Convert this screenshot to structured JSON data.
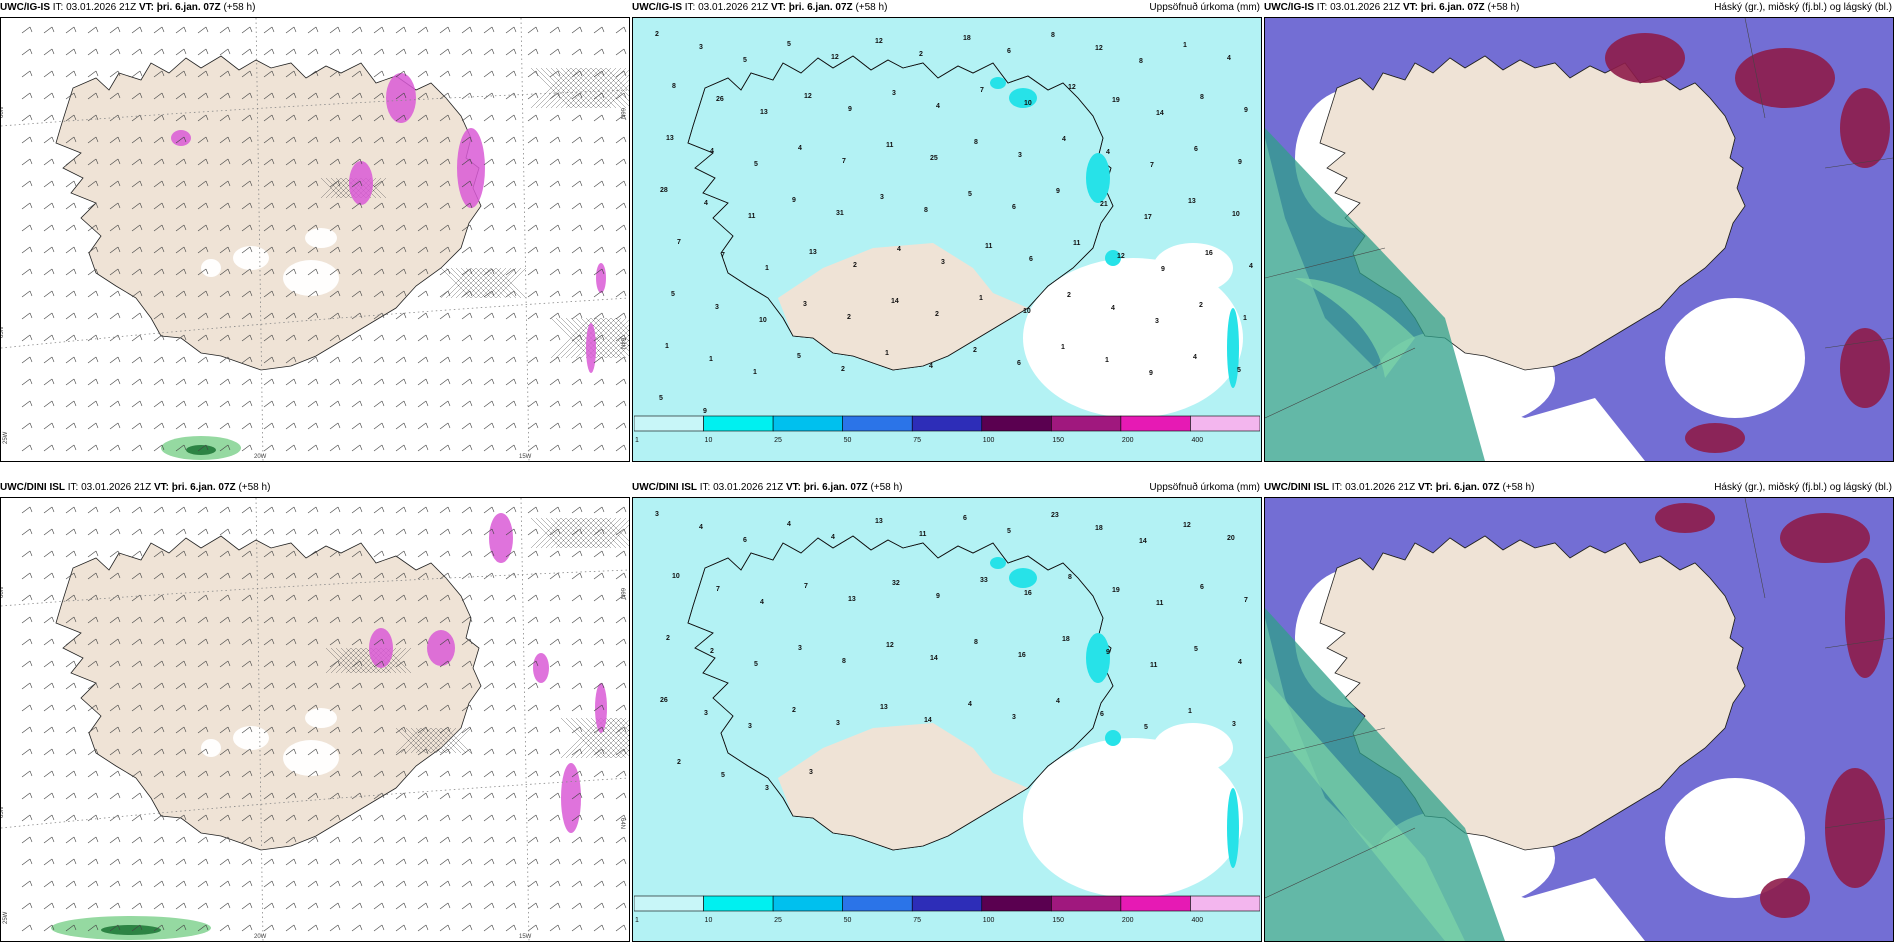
{
  "panels": [
    {
      "model": "UWC/IG-IS",
      "it": "03.01.2026 21Z",
      "vt": "þri. 6.jan. 07Z",
      "lead": "(+58 h)",
      "title": "",
      "kind": "wind"
    },
    {
      "model": "UWC/IG-IS",
      "it": "03.01.2026 21Z",
      "vt": "þri. 6.jan. 07Z",
      "lead": "(+58 h)",
      "title": "Uppsöfnuð úrkoma (mm)",
      "kind": "precip"
    },
    {
      "model": "UWC/IG-IS",
      "it": "03.01.2026 21Z",
      "vt": "þri. 6.jan. 07Z",
      "lead": "(+58 h)",
      "title": "Háský (gr.), miðský (fj.bl.) og lágský (bl.)",
      "kind": "cloud"
    },
    {
      "model": "UWC/DINI ISL",
      "it": "03.01.2026 21Z",
      "vt": "þri. 6.jan. 07Z",
      "lead": "(+58 h)",
      "title": "",
      "kind": "wind"
    },
    {
      "model": "UWC/DINI ISL",
      "it": "03.01.2026 21Z",
      "vt": "þri. 6.jan. 07Z",
      "lead": "(+58 h)",
      "title": "Uppsöfnuð úrkoma (mm)",
      "kind": "precip"
    },
    {
      "model": "UWC/DINI ISL",
      "it": "03.01.2026 21Z",
      "vt": "þri. 6.jan. 07Z",
      "lead": "(+58 h)",
      "title": "Háský (gr.), miðský (fj.bl.) og lágský (bl.)",
      "kind": "cloud"
    }
  ],
  "labels": {
    "it": "IT:",
    "vt": "VT:"
  },
  "grid_labels": {
    "lat66": "66N",
    "lat64": "64N",
    "lat65": "65N",
    "lon20": "20W",
    "lon15": "15W",
    "lon25": "25W"
  },
  "colorbar": {
    "ticks": [
      "1",
      "10",
      "25",
      "50",
      "75",
      "100",
      "150",
      "200",
      "400"
    ],
    "colors": [
      "#c8f6f8",
      "#00f0f0",
      "#00c0ee",
      "#2b74e8",
      "#2d2db8",
      "#5a0050",
      "#a0187e",
      "#e61ab4",
      "#f3b6ee"
    ]
  },
  "colors": {
    "land": "#efe3d6",
    "precip_light": "#b3f2f4",
    "precip_mid": "#27e2e8",
    "cloud_high": "#5a55cc",
    "cloud_mid": "#8e1c4a",
    "cloud_low": "#2fa08a"
  },
  "precip_numbers": {
    "top": [
      "2",
      "3",
      "5",
      "5",
      "12",
      "12",
      "2",
      "18",
      "6",
      "8",
      "12",
      "8",
      "1",
      "4",
      "8",
      "26",
      "13",
      "12",
      "9",
      "3",
      "4",
      "7",
      "10",
      "12",
      "19",
      "14",
      "8",
      "9",
      "13",
      "4",
      "5",
      "4",
      "7",
      "11",
      "25",
      "8",
      "3",
      "4",
      "4",
      "7",
      "6",
      "9",
      "28",
      "4",
      "11",
      "9",
      "31",
      "3",
      "8",
      "5",
      "6",
      "9",
      "21",
      "17",
      "13",
      "10",
      "7",
      "7",
      "1",
      "13",
      "2",
      "4",
      "3",
      "11",
      "6",
      "11",
      "12",
      "9",
      "16",
      "4",
      "5",
      "3",
      "10",
      "3",
      "2",
      "14",
      "2",
      "1",
      "10",
      "2",
      "4",
      "3",
      "2",
      "1",
      "1",
      "1",
      "1",
      "5",
      "2",
      "1",
      "4",
      "2",
      "6",
      "1",
      "1",
      "9",
      "4",
      "5",
      "5",
      "9"
    ],
    "bottom": [
      "3",
      "4",
      "6",
      "4",
      "4",
      "13",
      "11",
      "6",
      "5",
      "23",
      "18",
      "14",
      "12",
      "20",
      "10",
      "7",
      "4",
      "7",
      "13",
      "32",
      "9",
      "33",
      "16",
      "8",
      "19",
      "11",
      "6",
      "7",
      "2",
      "2",
      "5",
      "3",
      "8",
      "12",
      "14",
      "8",
      "16",
      "18",
      "9",
      "11",
      "5",
      "4",
      "26",
      "3",
      "3",
      "2",
      "3",
      "13",
      "14",
      "4",
      "3",
      "4",
      "6",
      "5",
      "1",
      "3",
      "2",
      "5",
      "3",
      "3"
    ]
  }
}
